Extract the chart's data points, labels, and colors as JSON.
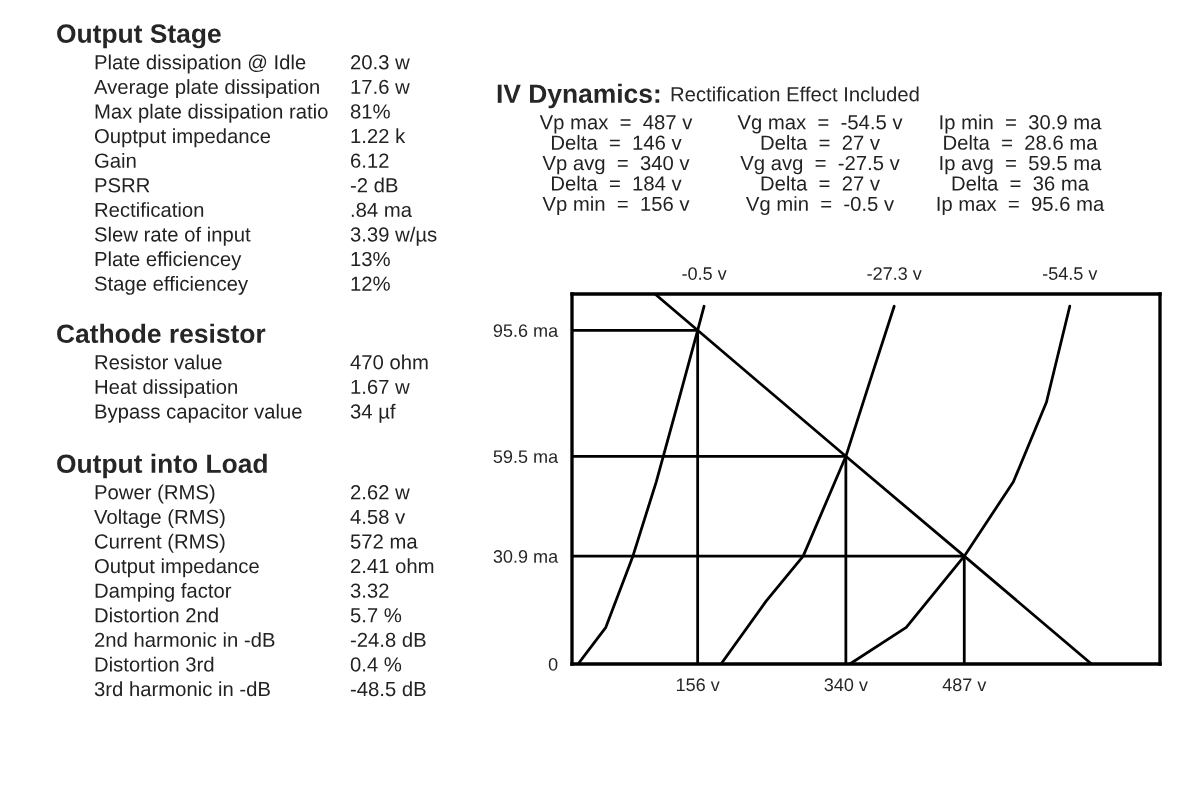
{
  "chart_data": [
    {
      "type": "other",
      "title": "Output Stage",
      "annotations": [
        "Plate dissipation @ Idle",
        "20.3 w",
        "Average plate dissipation",
        "17.6 w",
        "Max plate dissipation ratio",
        "81%",
        "Ouptput impedance",
        "1.22 k",
        "Gain",
        "6.12",
        "PSRR",
        "-2 dB",
        "Rectification",
        ".84 ma",
        "Slew rate of input",
        "3.39 w/µs",
        "Plate efficiencey",
        "13%",
        "Stage efficiencey",
        "12%"
      ]
    },
    {
      "type": "other",
      "title": "Cathode resistor",
      "annotations": [
        "Resistor value",
        "470 ohm",
        "Heat dissipation",
        "1.67 w",
        "Bypass capacitor value",
        "34 µf"
      ]
    },
    {
      "type": "other",
      "title": "Output into Load",
      "annotations": [
        "Power (RMS)",
        "2.62 w",
        "Voltage (RMS)",
        "4.58 v",
        "Current (RMS)",
        "572 ma",
        "Output impedance",
        "2.41 ohm",
        "Damping factor",
        "3.32",
        "Distortion 2nd",
        "5.7 %",
        "2nd harmonic in -dB",
        "-24.8 dB",
        "Distortion 3rd",
        "0.4 %",
        "3rd harmonic in -dB",
        "-48.5 dB"
      ]
    },
    {
      "type": "line",
      "title": "IV Dynamics:",
      "subtitle": "Rectification Effect Included",
      "annotations": [
        "Vp max  =  487 v",
        "Vg max  =  -54.5 v",
        "Ip min  =  30.9 ma",
        "Delta  =  146 v",
        "Delta  =  27 v",
        "Delta  =  28.6 ma",
        "Vp avg  =  340 v",
        "Vg avg  =  -27.5 v",
        "Ip avg  =  59.5 ma",
        "Delta  =  184 v",
        "Delta  =  27 v",
        "Delta  =  36 ma",
        "Vp min  =  156 v",
        "Vg min  =  -0.5 v",
        "Ip max  =  95.6 ma"
      ],
      "xlim": [
        0,
        730
      ],
      "ylim": [
        0,
        106
      ],
      "xticks": [
        {
          "value": 156,
          "label": "156 v"
        },
        {
          "value": 340,
          "label": "340 v"
        },
        {
          "value": 487,
          "label": "487 v"
        }
      ],
      "yticks": [
        0,
        {
          "value": 30.9,
          "label": "30.9 ma"
        },
        {
          "value": 59.5,
          "label": "59.5 ma"
        },
        {
          "value": 95.6,
          "label": "95.6 ma"
        }
      ],
      "grid": false,
      "legend": false,
      "marker": "none",
      "line_style": "solid",
      "series": [
        {
          "name": "-0.5 v",
          "color": "#000000",
          "x": [
            7.5,
            42,
            75.6,
            104.6,
            129.5,
            156,
            164
          ],
          "values": [
            0,
            10.5,
            30.9,
            52.2,
            73.1,
            95.6,
            102.5
          ]
        },
        {
          "name": "-27.3 v",
          "color": "#000000",
          "x": [
            185,
            241,
            287,
            340,
            373.5,
            400
          ],
          "values": [
            0,
            18,
            30.9,
            59.5,
            83.6,
            102.5
          ]
        },
        {
          "name": "-54.5 v",
          "color": "#000000",
          "x": [
            345,
            415,
            487,
            548,
            589,
            618
          ],
          "values": [
            0,
            10.5,
            30.9,
            52.2,
            75,
            102.5
          ]
        },
        {
          "color": "#000000",
          "x": [
            103,
            156,
            340,
            487,
            645
          ],
          "values": [
            106,
            95.6,
            59.5,
            30.9,
            0
          ]
        },
        {
          "color": "#000000",
          "x": [
            0,
            156,
            156
          ],
          "values": [
            95.6,
            95.6,
            0
          ]
        },
        {
          "color": "#000000",
          "x": [
            0,
            340,
            340
          ],
          "values": [
            59.5,
            59.5,
            0
          ]
        },
        {
          "color": "#000000",
          "x": [
            0,
            487,
            487
          ],
          "values": [
            30.9,
            30.9,
            0
          ]
        }
      ]
    }
  ]
}
